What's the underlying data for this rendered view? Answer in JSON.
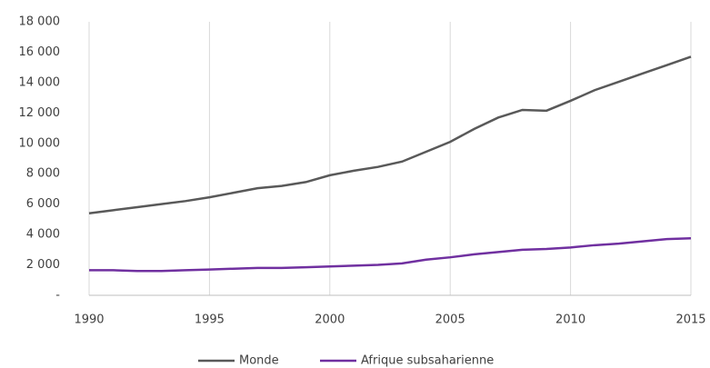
{
  "chart_data": {
    "type": "line",
    "x": [
      1990,
      1991,
      1992,
      1993,
      1994,
      1995,
      1996,
      1997,
      1998,
      1999,
      2000,
      2001,
      2002,
      2003,
      2004,
      2005,
      2006,
      2007,
      2008,
      2009,
      2010,
      2011,
      2012,
      2013,
      2014,
      2015
    ],
    "series": [
      {
        "name": "Monde",
        "color": "#595959",
        "values": [
          5400,
          5600,
          5800,
          6000,
          6200,
          6450,
          6750,
          7050,
          7200,
          7450,
          7900,
          8200,
          8450,
          8800,
          9450,
          10100,
          10950,
          11700,
          12200,
          12150,
          12800,
          13500,
          14050,
          14600,
          15150,
          15700
        ]
      },
      {
        "name": "Afrique subsaharienne",
        "color": "#7030a0",
        "values": [
          1650,
          1650,
          1600,
          1600,
          1650,
          1700,
          1750,
          1800,
          1800,
          1850,
          1900,
          1950,
          2000,
          2100,
          2350,
          2500,
          2700,
          2850,
          3000,
          3050,
          3150,
          3300,
          3400,
          3550,
          3700,
          3750
        ]
      }
    ],
    "xlim": [
      1990,
      2015
    ],
    "xticks": [
      1990,
      1995,
      2000,
      2005,
      2010,
      2015
    ],
    "ylim": [
      0,
      18000
    ],
    "yticks": [
      {
        "value": 0,
        "label": "-"
      },
      {
        "value": 2000,
        "label": "2 000"
      },
      {
        "value": 4000,
        "label": "4 000"
      },
      {
        "value": 6000,
        "label": "6 000"
      },
      {
        "value": 8000,
        "label": "8 000"
      },
      {
        "value": 10000,
        "label": "10 000"
      },
      {
        "value": 12000,
        "label": "12 000"
      },
      {
        "value": 14000,
        "label": "14 000"
      },
      {
        "value": 16000,
        "label": "16 000"
      },
      {
        "value": 18000,
        "label": "18 000"
      }
    ],
    "grid": "x",
    "legend": "bottom"
  }
}
